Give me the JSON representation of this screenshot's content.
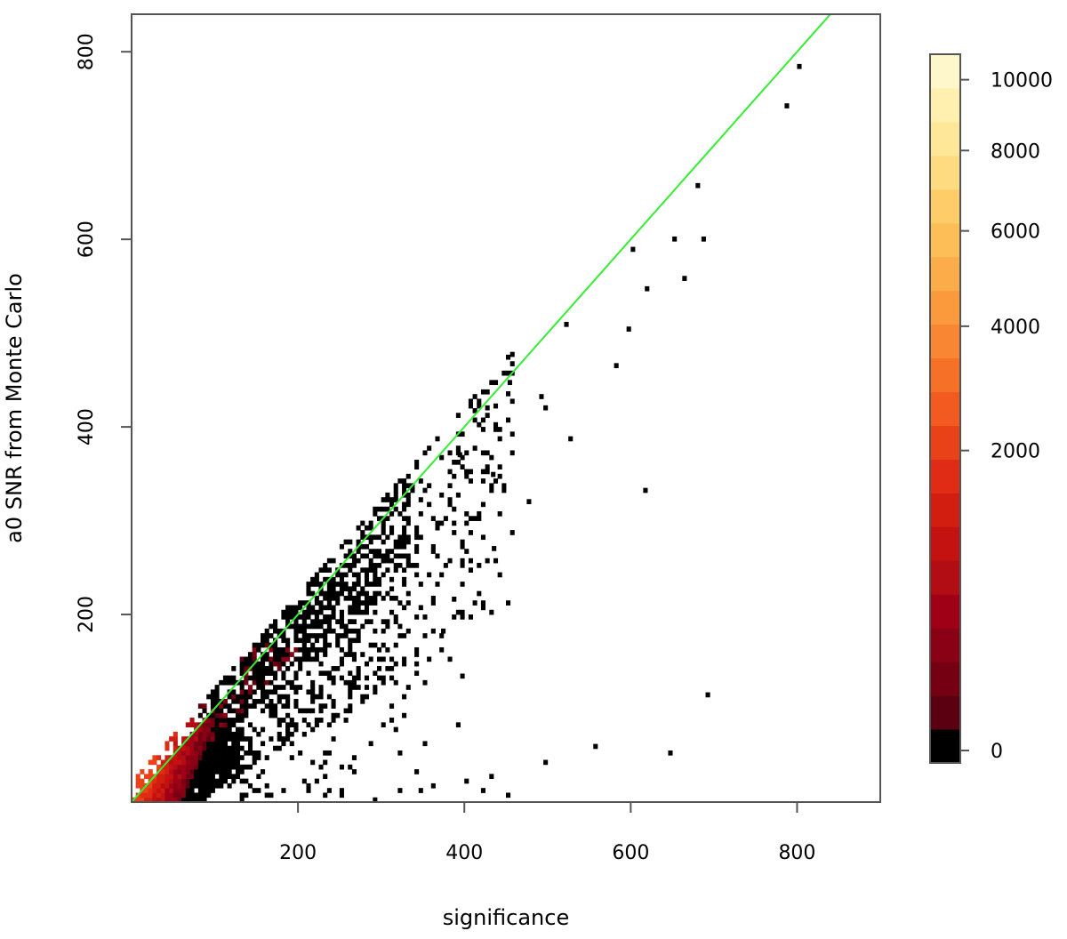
{
  "chart_data": {
    "type": "heatmap",
    "title": "",
    "xlabel": "significance",
    "ylabel": "a0 SNR from Monte Carlo",
    "xlim": [
      0,
      900
    ],
    "ylim": [
      0,
      840
    ],
    "grid": false,
    "x_ticks": [
      {
        "value": 200,
        "label": "200"
      },
      {
        "value": 400,
        "label": "400"
      },
      {
        "value": 600,
        "label": "600"
      },
      {
        "value": 800,
        "label": "800"
      }
    ],
    "y_ticks": [
      {
        "value": 200,
        "label": "200"
      },
      {
        "value": 400,
        "label": "400"
      },
      {
        "value": 600,
        "label": "600"
      },
      {
        "value": 800,
        "label": "800"
      }
    ],
    "reference_line": {
      "slope": 1.0,
      "intercept": 0,
      "color": "#33ee33"
    },
    "colorbar": {
      "placement": "right",
      "min": 0,
      "max": 10500,
      "ticks": [
        {
          "value": 0,
          "label": "0"
        },
        {
          "value": 2000,
          "label": "2000"
        },
        {
          "value": 4000,
          "label": "4000"
        },
        {
          "value": 6000,
          "label": "6000"
        },
        {
          "value": 8000,
          "label": "8000"
        },
        {
          "value": 10000,
          "label": "10000"
        }
      ],
      "colors": [
        "#000000",
        "#5a0010",
        "#740012",
        "#8a0014",
        "#a00016",
        "#b20c14",
        "#c41210",
        "#d21e10",
        "#e02c14",
        "#ea4218",
        "#f25a20",
        "#f67028",
        "#f98632",
        "#fb9a3c",
        "#fcad4a",
        "#fdbe58",
        "#fecd6a",
        "#fedb80",
        "#fee798",
        "#fff0b0",
        "#fff7cc"
      ]
    },
    "outliers": [
      [
        800,
        782
      ],
      [
        785,
        740
      ],
      [
        678,
        655
      ],
      [
        685,
        598
      ],
      [
        650,
        598
      ],
      [
        600,
        587
      ],
      [
        662,
        556
      ],
      [
        617,
        545
      ],
      [
        520,
        507
      ],
      [
        595,
        502
      ],
      [
        580,
        463
      ],
      [
        450,
        472
      ],
      [
        452,
        445
      ],
      [
        425,
        418
      ],
      [
        450,
        433
      ],
      [
        490,
        430
      ],
      [
        495,
        418
      ],
      [
        525,
        385
      ],
      [
        475,
        318
      ],
      [
        615,
        330
      ],
      [
        432,
        347
      ],
      [
        410,
        375
      ],
      [
        392,
        368
      ],
      [
        385,
        345
      ],
      [
        420,
        315
      ],
      [
        440,
        305
      ],
      [
        455,
        285
      ],
      [
        433,
        268
      ],
      [
        390,
        325
      ],
      [
        400,
        350
      ],
      [
        365,
        290
      ],
      [
        380,
        255
      ],
      [
        395,
        250
      ],
      [
        370,
        240
      ],
      [
        345,
        230
      ],
      [
        360,
        215
      ],
      [
        380,
        150
      ],
      [
        395,
        132
      ],
      [
        372,
        180
      ],
      [
        340,
        160
      ],
      [
        330,
        120
      ],
      [
        310,
        100
      ],
      [
        350,
        60
      ],
      [
        320,
        50
      ],
      [
        340,
        30
      ],
      [
        300,
        80
      ],
      [
        390,
        80
      ],
      [
        400,
        20
      ],
      [
        420,
        10
      ],
      [
        430,
        25
      ],
      [
        555,
        57
      ],
      [
        495,
        40
      ],
      [
        645,
        50
      ],
      [
        690,
        112
      ],
      [
        325,
        90
      ],
      [
        305,
        140
      ],
      [
        320,
        185
      ],
      [
        410,
        210
      ],
      [
        385,
        214
      ],
      [
        300,
        255
      ],
      [
        280,
        210
      ],
      [
        260,
        190
      ],
      [
        290,
        165
      ],
      [
        270,
        120
      ],
      [
        255,
        85
      ],
      [
        285,
        60
      ],
      [
        265,
        30
      ],
      [
        345,
        10
      ],
      [
        360,
        15
      ],
      [
        450,
        5
      ]
    ]
  }
}
